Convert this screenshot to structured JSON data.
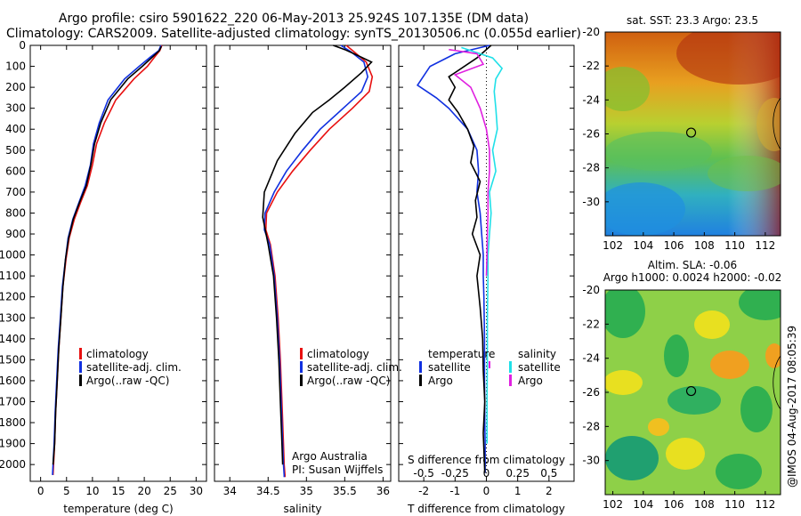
{
  "header": {
    "line1": "Argo profile: csiro 5901622_220 06-May-2013 25.924S 107.135E (DM data)",
    "line2": "Climatology: CARS2009. Satellite-adjusted climatology: synTS_20130506.nc (0.055d earlier)"
  },
  "colors": {
    "climatology": "#e81010",
    "satellite": "#1030e0",
    "argo": "#000000",
    "sat_salinity": "#20e0e8",
    "argo_salinity": "#e020e0"
  },
  "credit": "Argo Australia",
  "pi": "PI: Susan Wijffels",
  "stamp": "@IMOS 04-Aug-2017 08:05:39",
  "legend_main": [
    "climatology",
    "satellite-adj. clim.",
    "Argo(..raw -QC)"
  ],
  "legend_diff": {
    "temperature": "temperature",
    "salinity": "salinity",
    "satellite": "satellite",
    "argo": "Argo"
  },
  "chart_data": [
    {
      "type": "line",
      "xlabel": "temperature (deg C)",
      "ylim": [
        2080,
        0
      ],
      "xlim": [
        -2,
        32
      ],
      "xticks": [
        0,
        5,
        10,
        15,
        20,
        25,
        30
      ],
      "yticks": [
        0,
        100,
        200,
        300,
        400,
        500,
        600,
        700,
        800,
        900,
        1000,
        1100,
        1200,
        1300,
        1400,
        1500,
        1600,
        1700,
        1800,
        1900,
        2000
      ],
      "series": [
        {
          "name": "climatology",
          "color": "#e81010",
          "x": [
            23.4,
            23.0,
            22.0,
            20.6,
            18.0,
            14.5,
            12.3,
            10.8,
            10.0,
            9.0,
            7.7,
            6.5,
            5.5,
            4.9,
            4.3,
            3.9,
            3.5,
            3.2,
            2.9,
            2.7,
            2.5,
            2.4
          ],
          "y": [
            0,
            25,
            55,
            100,
            160,
            260,
            370,
            470,
            570,
            670,
            750,
            830,
            920,
            1020,
            1150,
            1300,
            1450,
            1600,
            1750,
            1900,
            2000,
            2050
          ]
        },
        {
          "name": "satellite-adj. clim.",
          "color": "#1030e0",
          "x": [
            23.2,
            22.8,
            21.2,
            19.0,
            16.2,
            13.0,
            11.3,
            10.2,
            9.6,
            8.6,
            7.4,
            6.2,
            5.3,
            4.8,
            4.2,
            3.8,
            3.4,
            3.1,
            2.8,
            2.6,
            2.4,
            2.3
          ],
          "y": [
            0,
            25,
            55,
            100,
            160,
            260,
            370,
            470,
            570,
            670,
            750,
            830,
            920,
            1020,
            1150,
            1300,
            1450,
            1600,
            1750,
            1900,
            2000,
            2050
          ]
        },
        {
          "name": "Argo(..raw -QC)",
          "color": "#000000",
          "x": [
            23.3,
            22.9,
            21.6,
            19.6,
            16.8,
            13.5,
            11.6,
            10.4,
            9.7,
            8.8,
            7.5,
            6.3,
            5.4,
            4.8,
            4.3,
            3.9,
            3.5,
            3.2,
            2.9,
            2.7,
            2.4
          ],
          "y": [
            5,
            25,
            55,
            100,
            160,
            260,
            370,
            470,
            570,
            670,
            750,
            830,
            920,
            1020,
            1150,
            1300,
            1450,
            1600,
            1750,
            1900,
            2000
          ]
        }
      ]
    },
    {
      "type": "line",
      "xlabel": "salinity",
      "ylim": [
        2080,
        0
      ],
      "xlim": [
        33.8,
        36.1
      ],
      "xticks": [
        34,
        34.5,
        35,
        35.5,
        36
      ],
      "series": [
        {
          "name": "climatology",
          "color": "#e81010",
          "x": [
            35.52,
            35.62,
            35.78,
            35.86,
            35.82,
            35.6,
            35.3,
            35.05,
            34.82,
            34.62,
            34.48,
            34.47,
            34.53,
            34.59,
            34.63,
            34.66,
            34.68,
            34.7,
            34.71,
            34.72,
            34.72
          ],
          "y": [
            0,
            30,
            80,
            150,
            220,
            300,
            400,
            500,
            600,
            700,
            800,
            880,
            950,
            1100,
            1300,
            1500,
            1700,
            1900,
            2000,
            2050,
            2060
          ]
        },
        {
          "name": "satellite-adj. clim.",
          "color": "#1030e0",
          "x": [
            35.45,
            35.58,
            35.75,
            35.8,
            35.72,
            35.48,
            35.18,
            34.95,
            34.74,
            34.58,
            34.46,
            34.45,
            34.52,
            34.58,
            34.62,
            34.65,
            34.67,
            34.69,
            34.7,
            34.71,
            34.71
          ],
          "y": [
            0,
            30,
            80,
            150,
            220,
            300,
            400,
            500,
            600,
            700,
            800,
            880,
            950,
            1100,
            1300,
            1500,
            1700,
            1900,
            2000,
            2050,
            2060
          ]
        },
        {
          "name": "Argo(..raw -QC)",
          "color": "#000000",
          "x": [
            35.35,
            35.5,
            35.62,
            35.85,
            35.72,
            35.5,
            35.3,
            35.08,
            34.85,
            34.62,
            34.45,
            34.43,
            34.5,
            34.57,
            34.61,
            34.64,
            34.66,
            34.68,
            34.69
          ],
          "y": [
            0,
            20,
            40,
            80,
            130,
            200,
            260,
            320,
            420,
            550,
            700,
            820,
            950,
            1100,
            1300,
            1500,
            1700,
            1900,
            2000
          ]
        }
      ]
    },
    {
      "type": "line",
      "xlabel": "T difference from climatology",
      "xlabel_top": "S difference from climatology",
      "ylim": [
        2080,
        0
      ],
      "xlim": [
        -2.8,
        2.8
      ],
      "xticks": [
        -2,
        -1,
        0,
        1,
        2
      ],
      "xticks_top_labels": [
        "-0.5",
        "-0.25",
        "0",
        "0.25",
        "0.5"
      ],
      "xticks_top_values": [
        -2,
        -1,
        0,
        1,
        2
      ],
      "series": [
        {
          "name": "temperature satellite",
          "color": "#1030e0",
          "x": [
            0.1,
            -1.0,
            -1.8,
            -2.2,
            -1.6,
            -1.2,
            -0.6,
            -0.3,
            -0.25,
            -0.3,
            -0.2,
            -0.15,
            -0.1,
            -0.1,
            -0.08,
            -0.06,
            -0.06,
            -0.05,
            -0.05,
            -0.04,
            -0.04
          ],
          "y": [
            0,
            40,
            100,
            190,
            250,
            300,
            400,
            500,
            600,
            700,
            800,
            900,
            1000,
            1100,
            1200,
            1400,
            1600,
            1700,
            1800,
            1900,
            2040
          ]
        },
        {
          "name": "temperature Argo",
          "color": "#000000",
          "x": [
            0.15,
            -0.3,
            -1.2,
            -1.0,
            -1.2,
            -0.9,
            -0.6,
            -0.4,
            -0.5,
            -0.2,
            -0.35,
            -0.3,
            -0.45,
            -0.2,
            -0.3,
            -0.2,
            -0.12,
            -0.1,
            -0.05,
            -0.1,
            -0.05
          ],
          "y": [
            0,
            60,
            150,
            200,
            260,
            320,
            400,
            480,
            560,
            650,
            740,
            820,
            900,
            1000,
            1100,
            1250,
            1400,
            1550,
            1700,
            1850,
            2040
          ]
        },
        {
          "name": "salinity satellite",
          "color": "#20e0e8",
          "x": [
            -0.8,
            0.2,
            0.5,
            0.3,
            0.25,
            0.3,
            0.35,
            0.2,
            0.3,
            0.1,
            0.15,
            0.1,
            0.05,
            0.05,
            0.03,
            0.03,
            0.02,
            0.02
          ],
          "y": [
            10,
            60,
            110,
            160,
            220,
            300,
            400,
            500,
            600,
            700,
            800,
            900,
            1000,
            1100,
            1300,
            1500,
            1700,
            1900
          ]
        },
        {
          "name": "salinity Argo",
          "color": "#e020e0",
          "x": [
            -1.2,
            -0.3,
            -0.1,
            -1.0,
            -0.5,
            -0.2,
            0.0,
            0.1,
            0.1,
            0.05,
            0.05,
            0.03,
            0.02,
            0.0
          ],
          "y": [
            20,
            40,
            90,
            140,
            200,
            300,
            400,
            500,
            600,
            700,
            800,
            900,
            1000,
            1100
          ]
        }
      ]
    },
    {
      "type": "heatmap",
      "title": "sat. SST: 23.3 Argo: 23.5",
      "xlim": [
        101.5,
        113
      ],
      "ylim": [
        -32,
        -20
      ],
      "xticks": [
        102,
        104,
        106,
        108,
        110,
        112
      ],
      "yticks": [
        -20,
        -22,
        -24,
        -26,
        -28,
        -30
      ],
      "marker": {
        "x": 107.135,
        "y": -25.924
      }
    },
    {
      "type": "heatmap",
      "title": "Altim. SLA: -0.06",
      "subtitle": "Argo h1000: 0.0024 h2000: -0.02",
      "xlim": [
        101.5,
        113
      ],
      "ylim": [
        -32,
        -20
      ],
      "xticks": [
        102,
        104,
        106,
        108,
        110,
        112
      ],
      "yticks": [
        -20,
        -22,
        -24,
        -26,
        -28,
        -30
      ],
      "marker": {
        "x": 107.135,
        "y": -25.924
      }
    }
  ]
}
